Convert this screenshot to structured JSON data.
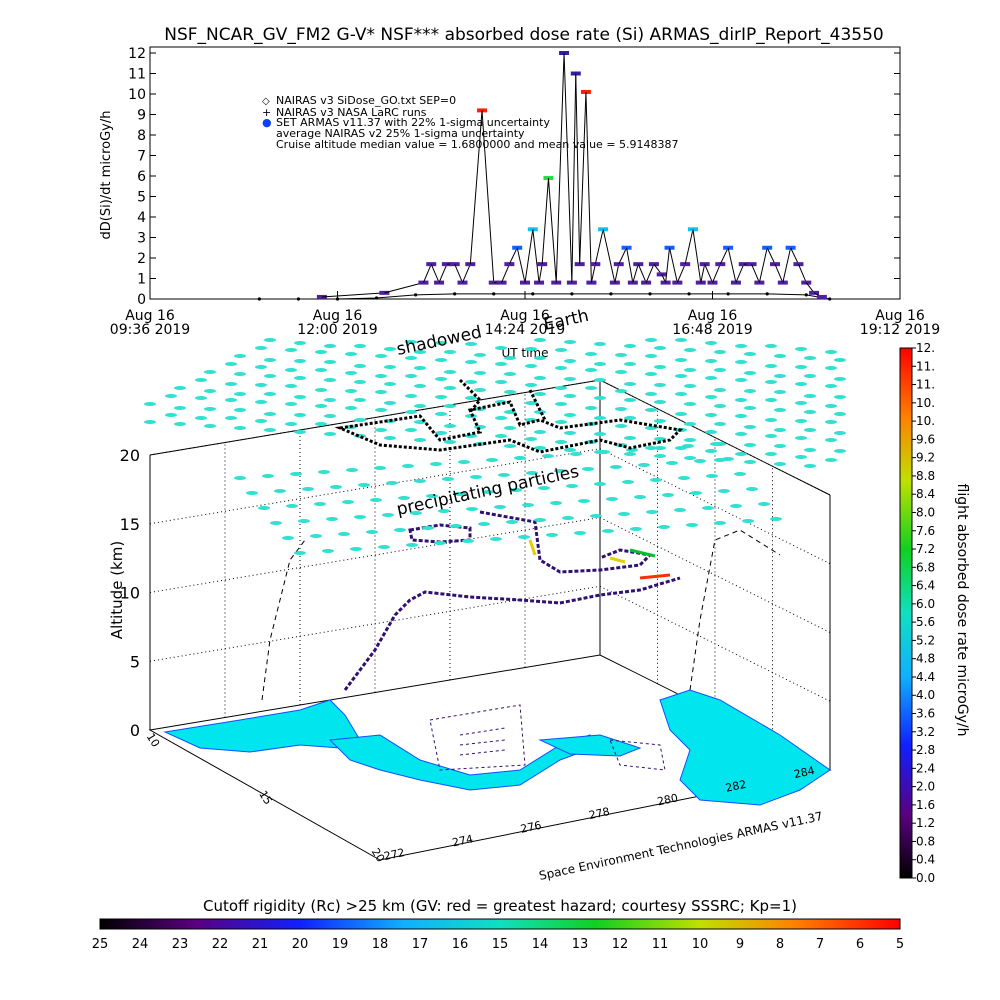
{
  "chart_data": [
    {
      "type": "scatter",
      "title": "NSF_NCAR_GV_FM2 G-V* NSF*** absorbed dose rate (Si) ARMAS_dirIP_Report_43550",
      "ylabel": "dD(Si)/dt microGy/h",
      "xlabel": "UT time",
      "ylim": [
        0,
        12
      ],
      "y_ticks": [
        "0",
        "1",
        "2",
        "3",
        "4",
        "5",
        "6",
        "7",
        "8",
        "9",
        "10",
        "11",
        "12"
      ],
      "x_ticks": [
        {
          "date": "Aug 16",
          "time": "09:36 2019"
        },
        {
          "date": "Aug 16",
          "time": "12:00 2019"
        },
        {
          "date": "Aug 16",
          "time": "14:24 2019"
        },
        {
          "date": "Aug 16",
          "time": "16:48 2019"
        },
        {
          "date": "Aug 16",
          "time": "19:12 2019"
        }
      ],
      "x_ticks_hours": [
        9.6,
        12.0,
        14.4,
        16.8,
        19.2
      ],
      "legend": {
        "placement": "top-left",
        "entries": [
          {
            "symbol": "◇",
            "label": "NAIRAS v3 SiDose_GO.txt SEP=0",
            "color": "#000000"
          },
          {
            "symbol": "+",
            "label": "NAIRAS v3 NASA LaRC runs",
            "color": "#000000"
          },
          {
            "symbol": "●",
            "label": "SET ARMAS v11.37 with 22% 1-sigma uncertainty",
            "color": "#1040ff"
          },
          {
            "symbol": "",
            "label": "average NAIRAS v2 25% 1-sigma uncertainty",
            "color": "#000000"
          },
          {
            "symbol": "",
            "label": "Cruise altitude median value = 1.6800000 and mean value = 5.9148387",
            "color": "#000000"
          }
        ]
      },
      "series": [
        {
          "name": "SET ARMAS v11.37 with 22% 1-sigma uncertainty",
          "x_hours": [
            11.8,
            12.6,
            13.1,
            13.2,
            13.3,
            13.4,
            13.5,
            13.6,
            13.7,
            13.85,
            14.0,
            14.1,
            14.2,
            14.3,
            14.4,
            14.5,
            14.58,
            14.62,
            14.7,
            14.8,
            14.9,
            15.0,
            15.05,
            15.1,
            15.18,
            15.25,
            15.3,
            15.4,
            15.55,
            15.6,
            15.7,
            15.78,
            15.85,
            15.95,
            16.05,
            16.15,
            16.2,
            16.25,
            16.35,
            16.45,
            16.55,
            16.65,
            16.7,
            16.8,
            16.9,
            17.0,
            17.1,
            17.2,
            17.3,
            17.4,
            17.5,
            17.6,
            17.7,
            17.8,
            17.9,
            18.0,
            18.1,
            18.2
          ],
          "values": [
            0.1,
            0.3,
            0.8,
            1.7,
            0.8,
            1.7,
            1.7,
            0.8,
            1.7,
            9.2,
            0.8,
            0.8,
            1.7,
            2.5,
            0.8,
            3.4,
            0.8,
            1.7,
            5.9,
            0.8,
            12,
            0.8,
            11,
            1.7,
            10.1,
            0.8,
            1.7,
            3.4,
            0.8,
            1.7,
            2.5,
            0.8,
            1.7,
            0.8,
            1.7,
            1.2,
            0.8,
            2.5,
            0.8,
            1.7,
            3.4,
            0.8,
            1.7,
            0.8,
            1.7,
            2.5,
            0.8,
            1.7,
            1.7,
            0.8,
            2.5,
            1.7,
            0.8,
            2.5,
            1.7,
            0.8,
            0.3,
            0.1
          ],
          "color": "#3020a0"
        },
        {
          "name": "NAIRAS v3 SiDose_GO.txt SEP=0",
          "x_hours": [
            11.0,
            11.5,
            12.0,
            12.5,
            13.0,
            13.5,
            14.0,
            14.5,
            15.0,
            15.5,
            16.0,
            16.5,
            17.0,
            17.5,
            18.0,
            18.3
          ],
          "values": [
            0,
            0,
            0,
            0.05,
            0.2,
            0.25,
            0.25,
            0.25,
            0.25,
            0.25,
            0.25,
            0.25,
            0.25,
            0.25,
            0.2,
            0
          ],
          "color": "#000000"
        }
      ]
    },
    {
      "type": "scatter",
      "title": "",
      "zlabel": "Altitude (km)",
      "z_ticks": [
        "0",
        "5",
        "10",
        "15",
        "20"
      ],
      "x_ticks": [
        "272",
        "274",
        "276",
        "278",
        "280",
        "282",
        "284"
      ],
      "y_ticks": [
        "10",
        "15",
        "20"
      ],
      "annotations": [
        "shadowed",
        "Earth",
        "precipitating particles"
      ],
      "credit": "Space Environment Technologies ARMAS v11.37",
      "path_color": "#301070",
      "hot_segments": [
        "#00c030",
        "#e0d000",
        "#ff3000"
      ]
    }
  ],
  "colorbar_right": {
    "label": "flight absorbed dose rate microGy/h",
    "ticks": [
      "0.0",
      "0.4",
      "0.8",
      "1.2",
      "1.6",
      "2.0",
      "2.4",
      "2.8",
      "3.2",
      "3.6",
      "4.0",
      "4.4",
      "4.8",
      "5.2",
      "5.6",
      "6.0",
      "6.4",
      "6.8",
      "7.2",
      "7.6",
      "8.0",
      "8.4",
      "8.8",
      "9.2",
      "9.6",
      "10.",
      "10.",
      "11.",
      "11.",
      "12."
    ]
  },
  "colorbar_bottom": {
    "label": "Cutoff rigidity (Rc) >25 km (GV: red = greatest hazard; courtesy SSSRC; Kp=1)",
    "ticks": [
      "25",
      "24",
      "23",
      "22",
      "21",
      "20",
      "19",
      "18",
      "17",
      "16",
      "15",
      "14",
      "13",
      "12",
      "11",
      "10",
      "9",
      "8",
      "7",
      "6",
      "5"
    ]
  },
  "colors": {
    "cyan_marker": "#30e0d0",
    "map_fill": "#00e5ee",
    "map_edge": "#1050ff"
  }
}
